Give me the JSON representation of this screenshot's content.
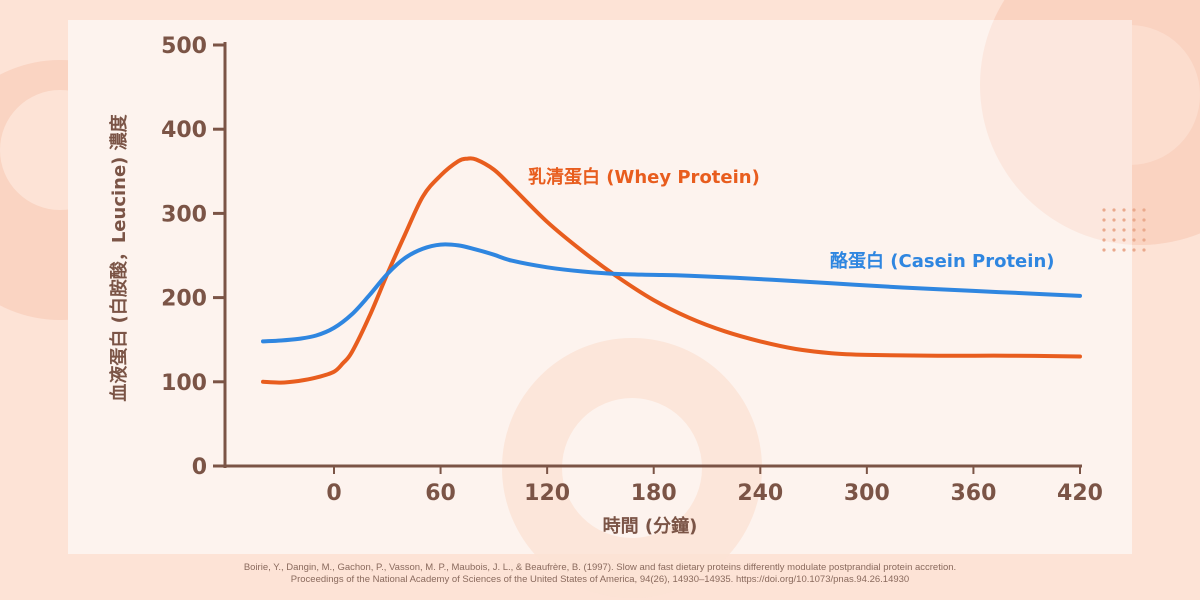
{
  "colors": {
    "page_background": "#fde3d6",
    "panel": "#fdf3ee",
    "axis": "#7b5446",
    "whey": "#e85d1e",
    "casein": "#2f86e0"
  },
  "chart_data": {
    "type": "line",
    "xlabel": "時間 (分鐘)",
    "ylabel": "血液蛋白 (白胺酸，Leucine) 濃度",
    "xlim": [
      -45,
      420
    ],
    "ylim": [
      0,
      500
    ],
    "x_ticks": [
      0,
      60,
      120,
      180,
      240,
      300,
      360,
      420
    ],
    "x_tick_labels": [
      "0",
      "60",
      "120",
      "180",
      "240",
      "300",
      "360",
      "420"
    ],
    "y_ticks": [
      0,
      100,
      200,
      300,
      400,
      500
    ],
    "y_tick_labels": [
      "0",
      "100",
      "200",
      "300",
      "400",
      "500"
    ],
    "series": [
      {
        "name": "乳清蛋白 (Whey Protein)",
        "color": "#e85d1e",
        "x": [
          -40,
          -30,
          -20,
          -10,
          0,
          5,
          10,
          20,
          30,
          40,
          50,
          60,
          70,
          75,
          80,
          90,
          100,
          120,
          140,
          160,
          180,
          200,
          220,
          240,
          260,
          280,
          300,
          340,
          380,
          420
        ],
        "y": [
          100,
          99,
          101,
          105,
          112,
          122,
          135,
          178,
          228,
          275,
          320,
          345,
          362,
          365,
          364,
          352,
          332,
          290,
          255,
          224,
          197,
          176,
          160,
          148,
          139,
          134,
          132,
          131,
          131,
          130
        ]
      },
      {
        "name": "酪蛋白 (Casein Protein)",
        "color": "#2f86e0",
        "x": [
          -40,
          -30,
          -20,
          -10,
          0,
          10,
          20,
          30,
          40,
          50,
          60,
          70,
          80,
          90,
          100,
          120,
          140,
          160,
          180,
          200,
          240,
          280,
          320,
          360,
          400,
          420
        ],
        "y": [
          148,
          149,
          151,
          155,
          164,
          180,
          203,
          228,
          247,
          258,
          263,
          262,
          257,
          251,
          244,
          236,
          231,
          228,
          227,
          226,
          222,
          217,
          212,
          208,
          204,
          202
        ]
      }
    ]
  },
  "citation": {
    "line1": "Boirie, Y., Dangin, M., Gachon, P., Vasson, M. P., Maubois, J. L., & Beaufrère, B. (1997). Slow and fast dietary proteins differently modulate postprandial protein accretion.",
    "line2": "Proceedings of the National Academy of Sciences of the United States of America, 94(26), 14930–14935. https://doi.org/10.1073/pnas.94.26.14930"
  }
}
